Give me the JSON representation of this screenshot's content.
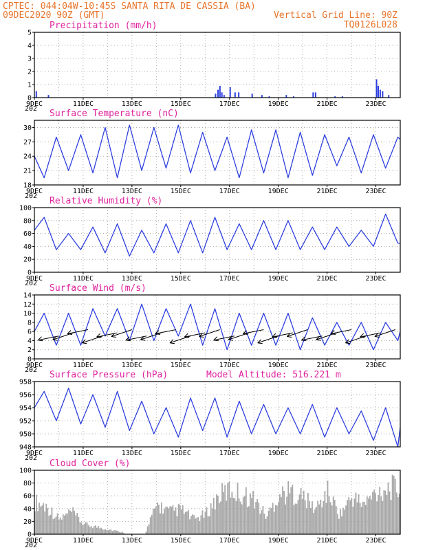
{
  "header": {
    "line1": "CPTEC:   044:04W-10:45S  SANTA RITA DE CASSIA (BA)",
    "line2": "09DEC2020 90Z (GMT)",
    "grid_note": "Vertical Grid Line: 90Z",
    "code": "TQ0126L028"
  },
  "colors": {
    "header": "#e8742a",
    "title": "#e0219e",
    "line": "#2d3fe0",
    "bar": "#a8a8a8",
    "grid": "#9a9a9a"
  },
  "x_axis": {
    "start": "09DEC",
    "end": "24DEC",
    "days": 15,
    "tick_labels": [
      "9DEC",
      "11DEC",
      "13DEC",
      "15DEC",
      "17DEC",
      "19DEC",
      "21DEC",
      "23DEC"
    ],
    "year_fragment": "202"
  },
  "chart_data": [
    {
      "id": "precip",
      "type": "bar",
      "title": "Precipitation (mm/h)",
      "ylim": [
        0,
        5
      ],
      "yticks": [
        0,
        1,
        2,
        3,
        4,
        5
      ],
      "bars": [
        {
          "day": 0.05,
          "value": 0.5
        },
        {
          "day": 0.55,
          "value": 0.2
        },
        {
          "day": 7.4,
          "value": 0.3
        },
        {
          "day": 7.5,
          "value": 0.6
        },
        {
          "day": 7.58,
          "value": 0.9
        },
        {
          "day": 7.66,
          "value": 0.4
        },
        {
          "day": 7.75,
          "value": 0.2
        },
        {
          "day": 8.0,
          "value": 0.8
        },
        {
          "day": 8.2,
          "value": 0.4
        },
        {
          "day": 8.35,
          "value": 0.4
        },
        {
          "day": 8.9,
          "value": 0.3
        },
        {
          "day": 9.3,
          "value": 0.2
        },
        {
          "day": 9.6,
          "value": 0.1
        },
        {
          "day": 10.3,
          "value": 0.2
        },
        {
          "day": 10.6,
          "value": 0.1
        },
        {
          "day": 11.4,
          "value": 0.4
        },
        {
          "day": 11.5,
          "value": 0.4
        },
        {
          "day": 12.3,
          "value": 0.1
        },
        {
          "day": 12.6,
          "value": 0.1
        },
        {
          "day": 14.0,
          "value": 1.4
        },
        {
          "day": 14.07,
          "value": 0.9
        },
        {
          "day": 14.15,
          "value": 0.6
        },
        {
          "day": 14.25,
          "value": 0.5
        },
        {
          "day": 14.5,
          "value": 0.2
        }
      ]
    },
    {
      "id": "temp",
      "type": "line",
      "title": "Surface Temperature (nC)",
      "ylim": [
        18,
        31.5
      ],
      "yticks": [
        18,
        21,
        24,
        27,
        30
      ],
      "x": [
        0,
        0.4,
        0.9,
        1.4,
        1.9,
        2.4,
        2.9,
        3.4,
        3.9,
        4.4,
        4.9,
        5.4,
        5.9,
        6.4,
        6.9,
        7.4,
        7.9,
        8.4,
        8.9,
        9.4,
        9.9,
        10.4,
        10.9,
        11.4,
        11.9,
        12.4,
        12.9,
        13.4,
        13.9,
        14.4,
        14.9,
        15
      ],
      "values": [
        24,
        19.5,
        28,
        21,
        28.5,
        20.5,
        30,
        19.5,
        30.5,
        21,
        30,
        21.5,
        30.5,
        20.5,
        29,
        21,
        28,
        19.5,
        29.5,
        20.5,
        29.5,
        19.5,
        29,
        20,
        28.5,
        22,
        28,
        20.5,
        28.5,
        21.5,
        28,
        27.5
      ]
    },
    {
      "id": "rh",
      "type": "line",
      "title": "Relative Humidity (%)",
      "ylim": [
        0,
        100
      ],
      "yticks": [
        0,
        20,
        40,
        60,
        80,
        100
      ],
      "x": [
        0,
        0.4,
        0.9,
        1.4,
        1.9,
        2.4,
        2.9,
        3.4,
        3.9,
        4.4,
        4.9,
        5.4,
        5.9,
        6.4,
        6.9,
        7.4,
        7.9,
        8.4,
        8.9,
        9.4,
        9.9,
        10.4,
        10.9,
        11.4,
        11.9,
        12.4,
        12.9,
        13.4,
        13.9,
        14.4,
        14.9,
        15
      ],
      "values": [
        65,
        85,
        35,
        60,
        35,
        70,
        30,
        75,
        25,
        65,
        30,
        75,
        30,
        80,
        30,
        85,
        35,
        75,
        35,
        80,
        35,
        80,
        35,
        70,
        35,
        70,
        40,
        65,
        40,
        90,
        45,
        45
      ]
    },
    {
      "id": "wind",
      "type": "line",
      "title": "Surface Wind (m/s)",
      "ylim": [
        0,
        14
      ],
      "yticks": [
        0,
        2,
        4,
        6,
        8,
        10,
        12,
        14
      ],
      "x": [
        0,
        0.4,
        0.9,
        1.4,
        1.9,
        2.4,
        2.9,
        3.4,
        3.9,
        4.4,
        4.9,
        5.4,
        5.9,
        6.4,
        6.9,
        7.4,
        7.9,
        8.4,
        8.9,
        9.4,
        9.9,
        10.4,
        10.9,
        11.4,
        11.9,
        12.4,
        12.9,
        13.4,
        13.9,
        14.4,
        14.9,
        15
      ],
      "values": [
        6,
        10,
        3,
        10,
        3,
        11,
        5,
        11,
        4,
        12,
        4,
        11,
        5,
        12,
        3,
        11,
        2,
        10,
        3,
        10,
        3,
        10,
        2,
        9,
        3,
        8,
        3,
        8,
        2,
        8,
        4,
        6
      ],
      "barbs_x": [
        1.0,
        1.6,
        2.2,
        2.8,
        3.4,
        4.0,
        4.6,
        5.2,
        5.8,
        6.4,
        7.0,
        7.6,
        8.2,
        8.8,
        9.4,
        10.0,
        10.6,
        11.2,
        11.8,
        12.4,
        13.0,
        13.6,
        14.2,
        14.8
      ]
    },
    {
      "id": "pres",
      "type": "line",
      "title": "Surface Pressure (hPa)",
      "annotation": "Model Altitude: 516.221  m",
      "ylim": [
        948,
        958
      ],
      "yticks": [
        948,
        950,
        952,
        954,
        956,
        958
      ],
      "x": [
        0,
        0.4,
        0.9,
        1.4,
        1.9,
        2.4,
        2.9,
        3.4,
        3.9,
        4.4,
        4.9,
        5.4,
        5.9,
        6.4,
        6.9,
        7.4,
        7.9,
        8.4,
        8.9,
        9.4,
        9.9,
        10.4,
        10.9,
        11.4,
        11.9,
        12.4,
        12.9,
        13.4,
        13.9,
        14.4,
        14.9,
        15
      ],
      "values": [
        954,
        956.5,
        952,
        957,
        951.5,
        956,
        951,
        956.5,
        950.5,
        955,
        950,
        954,
        949.5,
        955.5,
        950.5,
        955.5,
        949.5,
        955,
        950,
        954.5,
        950,
        954,
        950,
        954.5,
        949.5,
        954,
        950,
        953.5,
        949,
        954,
        948,
        951
      ]
    },
    {
      "id": "cloud",
      "type": "bar",
      "title": "Cloud Cover (%)",
      "ylim": [
        0,
        100
      ],
      "yticks": [
        0,
        20,
        40,
        60,
        80,
        100
      ],
      "profile_x": [
        0,
        0.5,
        1,
        1.5,
        2,
        2.5,
        3,
        3.5,
        4,
        4.5,
        5,
        5.5,
        6,
        6.5,
        7,
        7.5,
        8,
        8.5,
        9,
        9.5,
        10,
        10.5,
        11,
        11.5,
        12,
        12.5,
        13,
        13.5,
        14,
        14.5,
        15
      ],
      "profile": [
        65,
        55,
        30,
        45,
        20,
        15,
        10,
        5,
        0,
        0,
        60,
        45,
        50,
        30,
        40,
        75,
        90,
        80,
        70,
        35,
        80,
        85,
        75,
        50,
        85,
        40,
        75,
        60,
        85,
        95,
        90
      ]
    }
  ]
}
